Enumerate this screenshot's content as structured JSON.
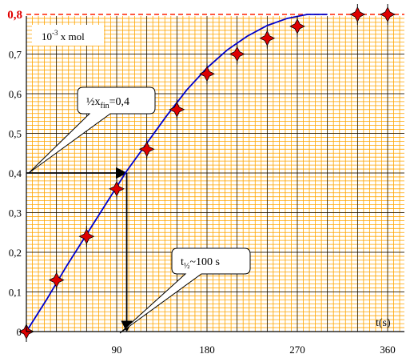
{
  "chart_data": {
    "type": "scatter",
    "xlabel": "t(s)",
    "ylabel": "",
    "unit_box": {
      "base": "10",
      "exp": "-3",
      "rest": " x mol"
    },
    "xlim": [
      0,
      390
    ],
    "ylim": [
      0,
      0.82
    ],
    "x_ticks": [
      {
        "value": 90,
        "label": "90"
      },
      {
        "value": 180,
        "label": "180"
      },
      {
        "value": 270,
        "label": "270"
      },
      {
        "value": 360,
        "label": "360"
      }
    ],
    "y_ticks": [
      {
        "value": 0,
        "label": "0"
      },
      {
        "value": 0.1,
        "label": "0,1"
      },
      {
        "value": 0.2,
        "label": "0,2"
      },
      {
        "value": 0.3,
        "label": "0,3"
      },
      {
        "value": 0.4,
        "label": "0,4"
      },
      {
        "value": 0.5,
        "label": "0,5"
      },
      {
        "value": 0.6,
        "label": "0,6"
      },
      {
        "value": 0.7,
        "label": "0,7"
      },
      {
        "value": 0.8,
        "label": "0,8"
      }
    ],
    "points": [
      {
        "x": 0,
        "y": 0.0
      },
      {
        "x": 30,
        "y": 0.13
      },
      {
        "x": 60,
        "y": 0.24
      },
      {
        "x": 90,
        "y": 0.36
      },
      {
        "x": 120,
        "y": 0.46
      },
      {
        "x": 150,
        "y": 0.56
      },
      {
        "x": 180,
        "y": 0.65
      },
      {
        "x": 210,
        "y": 0.7
      },
      {
        "x": 240,
        "y": 0.74
      },
      {
        "x": 270,
        "y": 0.77
      },
      {
        "x": 330,
        "y": 0.8
      },
      {
        "x": 360,
        "y": 0.8
      }
    ],
    "fit_curve": [
      [
        0,
        0.0
      ],
      [
        20,
        0.08
      ],
      [
        40,
        0.165
      ],
      [
        60,
        0.245
      ],
      [
        80,
        0.325
      ],
      [
        100,
        0.405
      ],
      [
        120,
        0.475
      ],
      [
        140,
        0.545
      ],
      [
        160,
        0.61
      ],
      [
        180,
        0.665
      ],
      [
        200,
        0.71
      ],
      [
        220,
        0.745
      ],
      [
        240,
        0.772
      ],
      [
        260,
        0.79
      ],
      [
        280,
        0.8
      ],
      [
        300,
        0.8
      ]
    ],
    "asymptote": {
      "y": 0.8,
      "label": "0,8",
      "color": "#ff2200"
    },
    "half_value": {
      "y": 0.4,
      "x": 100
    },
    "annotations": [
      {
        "id": "half",
        "prefix": "½x",
        "sub": "fin",
        "suffix": "=0,4"
      },
      {
        "id": "thalf",
        "prefix": "t",
        "sub": "½",
        "suffix": "~100 s"
      }
    ],
    "colors": {
      "grid_minor": "#ffa500",
      "grid_major": "#000000",
      "curve": "#0000cc",
      "marker": "#dd0000"
    }
  }
}
